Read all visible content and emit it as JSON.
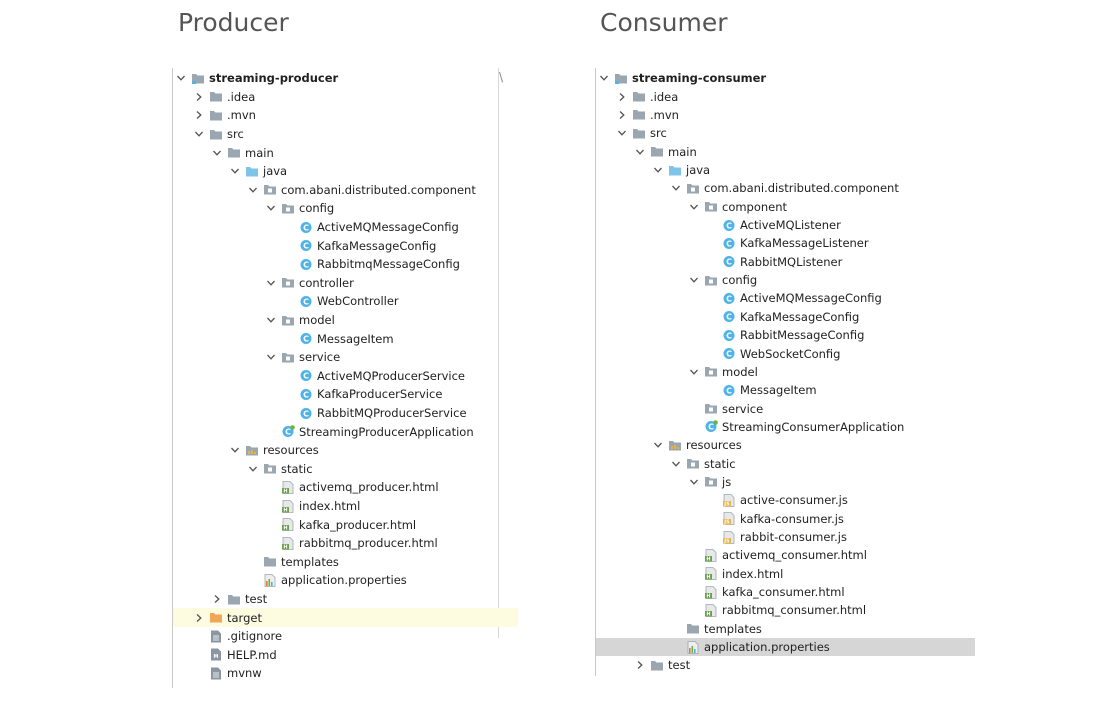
{
  "headings": {
    "left": "Producer",
    "right": "Consumer"
  },
  "producer": {
    "rows": [
      {
        "label": "streaming-producer",
        "depth": 0,
        "arrow": "down",
        "icon": "module",
        "bold": true
      },
      {
        "label": ".idea",
        "depth": 1,
        "arrow": "right",
        "icon": "folder"
      },
      {
        "label": ".mvn",
        "depth": 1,
        "arrow": "right",
        "icon": "folder"
      },
      {
        "label": "src",
        "depth": 1,
        "arrow": "down",
        "icon": "folder"
      },
      {
        "label": "main",
        "depth": 2,
        "arrow": "down",
        "icon": "folder"
      },
      {
        "label": "java",
        "depth": 3,
        "arrow": "down",
        "icon": "folder-blue"
      },
      {
        "label": "com.abani.distributed.component",
        "depth": 4,
        "arrow": "down",
        "icon": "package"
      },
      {
        "label": "config",
        "depth": 5,
        "arrow": "down",
        "icon": "package"
      },
      {
        "label": "ActiveMQMessageConfig",
        "depth": 6,
        "arrow": "none",
        "icon": "class"
      },
      {
        "label": "KafkaMessageConfig",
        "depth": 6,
        "arrow": "none",
        "icon": "class"
      },
      {
        "label": "RabbitmqMessageConfig",
        "depth": 6,
        "arrow": "none",
        "icon": "class"
      },
      {
        "label": "controller",
        "depth": 5,
        "arrow": "down",
        "icon": "package"
      },
      {
        "label": "WebController",
        "depth": 6,
        "arrow": "none",
        "icon": "class"
      },
      {
        "label": "model",
        "depth": 5,
        "arrow": "down",
        "icon": "package"
      },
      {
        "label": "MessageItem",
        "depth": 6,
        "arrow": "none",
        "icon": "class"
      },
      {
        "label": "service",
        "depth": 5,
        "arrow": "down",
        "icon": "package"
      },
      {
        "label": "ActiveMQProducerService",
        "depth": 6,
        "arrow": "none",
        "icon": "class"
      },
      {
        "label": "KafkaProducerService",
        "depth": 6,
        "arrow": "none",
        "icon": "class"
      },
      {
        "label": "RabbitMQProducerService",
        "depth": 6,
        "arrow": "none",
        "icon": "class"
      },
      {
        "label": "StreamingProducerApplication",
        "depth": 5,
        "arrow": "none",
        "icon": "spring-class"
      },
      {
        "label": "resources",
        "depth": 3,
        "arrow": "down",
        "icon": "folder-resources"
      },
      {
        "label": "static",
        "depth": 4,
        "arrow": "down",
        "icon": "package"
      },
      {
        "label": "activemq_producer.html",
        "depth": 5,
        "arrow": "none",
        "icon": "html"
      },
      {
        "label": "index.html",
        "depth": 5,
        "arrow": "none",
        "icon": "html"
      },
      {
        "label": "kafka_producer.html",
        "depth": 5,
        "arrow": "none",
        "icon": "html"
      },
      {
        "label": "rabbitmq_producer.html",
        "depth": 5,
        "arrow": "none",
        "icon": "html"
      },
      {
        "label": "templates",
        "depth": 4,
        "arrow": "none",
        "icon": "folder"
      },
      {
        "label": "application.properties",
        "depth": 4,
        "arrow": "none",
        "icon": "properties"
      },
      {
        "label": "test",
        "depth": 2,
        "arrow": "right",
        "icon": "folder"
      },
      {
        "label": "target",
        "depth": 1,
        "arrow": "right",
        "icon": "folder-orange",
        "highlight": "yellow"
      },
      {
        "label": ".gitignore",
        "depth": 1,
        "arrow": "none",
        "icon": "file"
      },
      {
        "label": "HELP.md",
        "depth": 1,
        "arrow": "none",
        "icon": "md"
      },
      {
        "label": "mvnw",
        "depth": 1,
        "arrow": "none",
        "icon": "file"
      }
    ]
  },
  "consumer": {
    "rows": [
      {
        "label": "streaming-consumer",
        "depth": 0,
        "arrow": "down",
        "icon": "module",
        "bold": true
      },
      {
        "label": ".idea",
        "depth": 1,
        "arrow": "right",
        "icon": "folder"
      },
      {
        "label": ".mvn",
        "depth": 1,
        "arrow": "right",
        "icon": "folder"
      },
      {
        "label": "src",
        "depth": 1,
        "arrow": "down",
        "icon": "folder"
      },
      {
        "label": "main",
        "depth": 2,
        "arrow": "down",
        "icon": "folder"
      },
      {
        "label": "java",
        "depth": 3,
        "arrow": "down",
        "icon": "folder-blue"
      },
      {
        "label": "com.abani.distributed.component",
        "depth": 4,
        "arrow": "down",
        "icon": "package"
      },
      {
        "label": "component",
        "depth": 5,
        "arrow": "down",
        "icon": "package"
      },
      {
        "label": "ActiveMQListener",
        "depth": 6,
        "arrow": "none",
        "icon": "class"
      },
      {
        "label": "KafkaMessageListener",
        "depth": 6,
        "arrow": "none",
        "icon": "class"
      },
      {
        "label": "RabbitMQListener",
        "depth": 6,
        "arrow": "none",
        "icon": "class"
      },
      {
        "label": "config",
        "depth": 5,
        "arrow": "down",
        "icon": "package"
      },
      {
        "label": "ActiveMQMessageConfig",
        "depth": 6,
        "arrow": "none",
        "icon": "class"
      },
      {
        "label": "KafkaMessageConfig",
        "depth": 6,
        "arrow": "none",
        "icon": "class"
      },
      {
        "label": "RabbitMessageConfig",
        "depth": 6,
        "arrow": "none",
        "icon": "class"
      },
      {
        "label": "WebSocketConfig",
        "depth": 6,
        "arrow": "none",
        "icon": "class"
      },
      {
        "label": "model",
        "depth": 5,
        "arrow": "down",
        "icon": "package"
      },
      {
        "label": "MessageItem",
        "depth": 6,
        "arrow": "none",
        "icon": "class"
      },
      {
        "label": "service",
        "depth": 5,
        "arrow": "none",
        "icon": "package"
      },
      {
        "label": "StreamingConsumerApplication",
        "depth": 5,
        "arrow": "none",
        "icon": "spring-class"
      },
      {
        "label": "resources",
        "depth": 3,
        "arrow": "down",
        "icon": "folder-resources"
      },
      {
        "label": "static",
        "depth": 4,
        "arrow": "down",
        "icon": "package"
      },
      {
        "label": "js",
        "depth": 5,
        "arrow": "down",
        "icon": "package"
      },
      {
        "label": "active-consumer.js",
        "depth": 6,
        "arrow": "none",
        "icon": "js"
      },
      {
        "label": "kafka-consumer.js",
        "depth": 6,
        "arrow": "none",
        "icon": "js"
      },
      {
        "label": "rabbit-consumer.js",
        "depth": 6,
        "arrow": "none",
        "icon": "js"
      },
      {
        "label": "activemq_consumer.html",
        "depth": 5,
        "arrow": "none",
        "icon": "html"
      },
      {
        "label": "index.html",
        "depth": 5,
        "arrow": "none",
        "icon": "html"
      },
      {
        "label": "kafka_consumer.html",
        "depth": 5,
        "arrow": "none",
        "icon": "html"
      },
      {
        "label": "rabbitmq_consumer.html",
        "depth": 5,
        "arrow": "none",
        "icon": "html"
      },
      {
        "label": "templates",
        "depth": 4,
        "arrow": "none",
        "icon": "folder"
      },
      {
        "label": "application.properties",
        "depth": 4,
        "arrow": "none",
        "icon": "properties",
        "highlight": "grey"
      },
      {
        "label": "test",
        "depth": 2,
        "arrow": "right",
        "icon": "folder"
      }
    ]
  },
  "colors": {
    "folder": "#9aa7b0",
    "folder_blue": "#7fc4e8",
    "folder_orange": "#f2a65a",
    "class": "#4fb3e8",
    "spring": "#6db33f",
    "js": "#e8b443",
    "html": "#6a9f4b"
  }
}
